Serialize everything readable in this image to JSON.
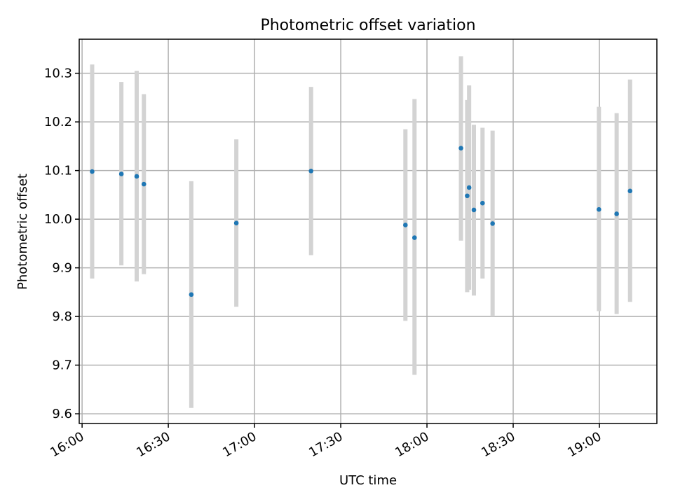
{
  "chart_data": {
    "type": "scatter",
    "title": "Photometric offset variation",
    "xlabel": "UTC time",
    "ylabel": "Photometric offset",
    "xlim": [
      "15:59",
      "19:20"
    ],
    "ylim": [
      9.58,
      10.37
    ],
    "x_ticks": [
      "16:00",
      "16:30",
      "17:00",
      "17:30",
      "18:00",
      "18:30",
      "19:00"
    ],
    "y_ticks": [
      "9.6",
      "9.7",
      "9.8",
      "9.9",
      "10.0",
      "10.1",
      "10.2",
      "10.3"
    ],
    "grid": true,
    "points": [
      {
        "x": "16:03:30",
        "y": 10.098,
        "ylow": 9.878,
        "yhigh": 10.318
      },
      {
        "x": "16:13:40",
        "y": 10.093,
        "ylow": 9.905,
        "yhigh": 10.282
      },
      {
        "x": "16:19:00",
        "y": 10.088,
        "ylow": 9.872,
        "yhigh": 10.305
      },
      {
        "x": "16:21:30",
        "y": 10.072,
        "ylow": 9.887,
        "yhigh": 10.257
      },
      {
        "x": "16:38:00",
        "y": 9.845,
        "ylow": 9.612,
        "yhigh": 10.078
      },
      {
        "x": "16:53:40",
        "y": 9.992,
        "ylow": 9.82,
        "yhigh": 10.164
      },
      {
        "x": "17:19:40",
        "y": 10.099,
        "ylow": 9.926,
        "yhigh": 10.272
      },
      {
        "x": "17:52:30",
        "y": 9.988,
        "ylow": 9.791,
        "yhigh": 10.185
      },
      {
        "x": "17:55:40",
        "y": 9.962,
        "ylow": 9.68,
        "yhigh": 10.247
      },
      {
        "x": "18:11:50",
        "y": 10.146,
        "ylow": 9.956,
        "yhigh": 10.335
      },
      {
        "x": "18:14:00",
        "y": 10.048,
        "ylow": 9.85,
        "yhigh": 10.245
      },
      {
        "x": "18:14:40",
        "y": 10.065,
        "ylow": 9.855,
        "yhigh": 10.275
      },
      {
        "x": "18:16:20",
        "y": 10.019,
        "ylow": 9.843,
        "yhigh": 10.194
      },
      {
        "x": "18:19:20",
        "y": 10.033,
        "ylow": 9.878,
        "yhigh": 10.188
      },
      {
        "x": "18:22:50",
        "y": 9.991,
        "ylow": 9.8,
        "yhigh": 10.182
      },
      {
        "x": "18:59:50",
        "y": 10.02,
        "ylow": 9.811,
        "yhigh": 10.231
      },
      {
        "x": "19:06:00",
        "y": 10.011,
        "ylow": 9.805,
        "yhigh": 10.218
      },
      {
        "x": "19:10:40",
        "y": 10.058,
        "ylow": 9.83,
        "yhigh": 10.287
      }
    ],
    "colors": {
      "points": "#1f77b4",
      "error_bars": "#d3d3d3",
      "grid": "#b0b0b0"
    }
  }
}
